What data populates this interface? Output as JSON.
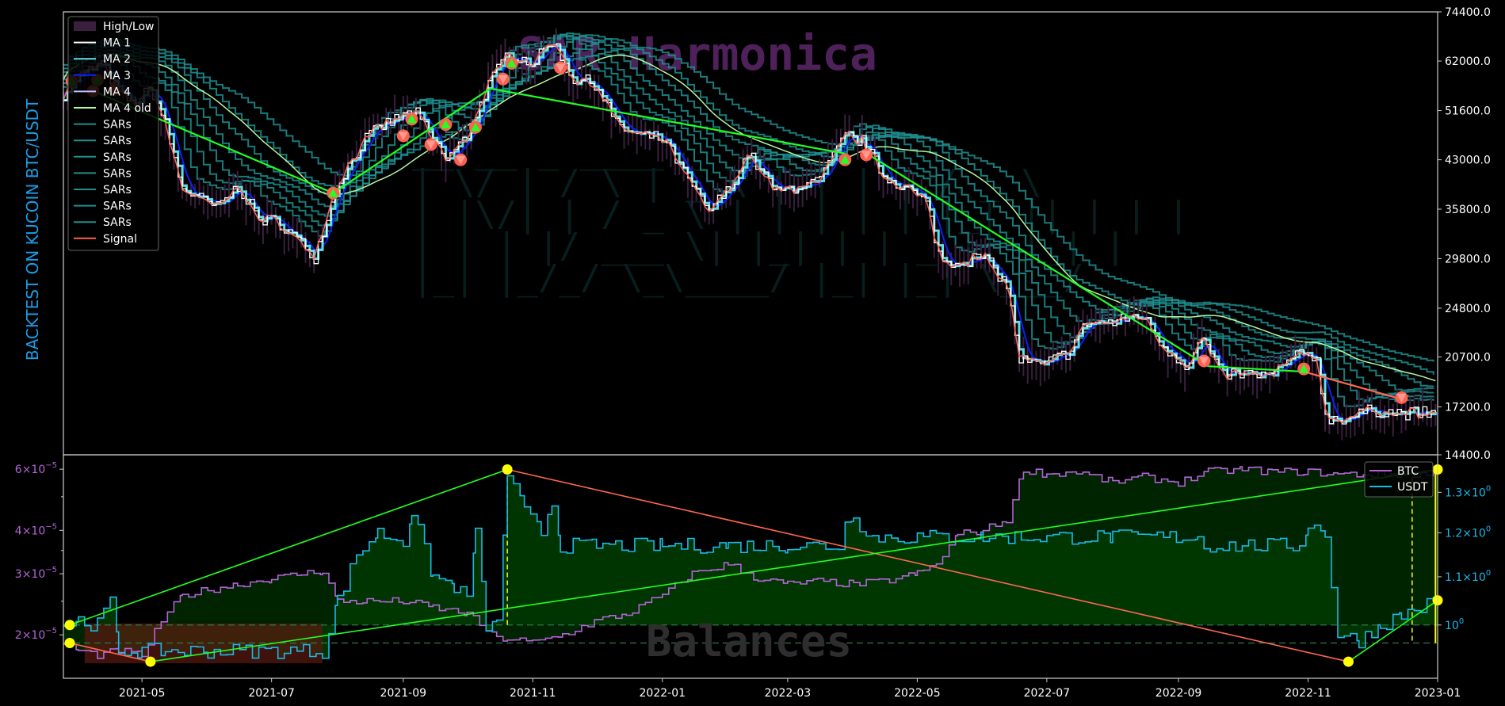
{
  "side_label": "BACKTEST ON KUCOIN  BTC/USDT",
  "watermarks": {
    "top": "SAR Harmonica",
    "bottom": "Balances"
  },
  "colors": {
    "background": "#000000",
    "frame": "#cccccc",
    "price_hl": "#3a1f3f",
    "ma1": "#ffffff",
    "ma2": "#5fe0e8",
    "ma3": "#0a20ff",
    "ma4": "#c0c0ff",
    "ma4old": "#b8f5a0",
    "sars": "#1f8f90",
    "signal": "#ff6050",
    "trade_win": "#22ff22",
    "trade_loss": "#ff6650",
    "btc": "#b464d8",
    "usdt": "#1ab8ea",
    "marker": "#ffff00",
    "fill_green": "#003a00",
    "fill_red": "#5a1a10",
    "watermark_top": "#6a2d78",
    "watermark_bottom": "#2e2e2e",
    "side_label": "#1a9ee8"
  },
  "chart_data": [
    {
      "type": "line",
      "panel": "price",
      "y_scale": "log",
      "ylim": [
        14400,
        74400
      ],
      "y_ticks": [
        "74400.0",
        "62000.0",
        "51600.0",
        "43000.0",
        "35800.0",
        "29800.0",
        "24800.0",
        "20700.0",
        "17200.0",
        "14400.0"
      ],
      "x_range": [
        "2021-03-25",
        "2023-01-01"
      ],
      "legend": {
        "position": "top-left",
        "entries": [
          "High/Low",
          "MA 1",
          "MA 2",
          "MA 3",
          "MA 4",
          "MA 4 old",
          "SARs",
          "SARs",
          "SARs",
          "SARs",
          "SARs",
          "SARs",
          "SARs",
          "Signal"
        ]
      },
      "price_series": {
        "name": "MA 1",
        "x": [
          "2021-03-25",
          "2021-04-01",
          "2021-04-12",
          "2021-04-20",
          "2021-04-27",
          "2021-05-05",
          "2021-05-12",
          "2021-05-19",
          "2021-05-26",
          "2021-06-05",
          "2021-06-15",
          "2021-06-25",
          "2021-07-05",
          "2021-07-15",
          "2021-07-21",
          "2021-08-01",
          "2021-08-14",
          "2021-08-23",
          "2021-09-06",
          "2021-09-21",
          "2021-10-01",
          "2021-10-10",
          "2021-10-20",
          "2021-11-01",
          "2021-11-10",
          "2021-11-20",
          "2021-12-01",
          "2021-12-10",
          "2021-12-20",
          "2022-01-01",
          "2022-01-10",
          "2022-01-22",
          "2022-02-01",
          "2022-02-10",
          "2022-02-24",
          "2022-03-05",
          "2022-03-15",
          "2022-03-28",
          "2022-04-05",
          "2022-04-15",
          "2022-04-25",
          "2022-05-05",
          "2022-05-12",
          "2022-05-20",
          "2022-06-01",
          "2022-06-12",
          "2022-06-18",
          "2022-06-28",
          "2022-07-10",
          "2022-07-20",
          "2022-08-01",
          "2022-08-14",
          "2022-08-25",
          "2022-09-05",
          "2022-09-12",
          "2022-09-20",
          "2022-10-01",
          "2022-10-15",
          "2022-10-25",
          "2022-11-05",
          "2022-11-09",
          "2022-11-20",
          "2022-12-01",
          "2022-12-15",
          "2022-12-25",
          "2023-01-01"
        ],
        "y": [
          55000,
          58500,
          61500,
          55000,
          53000,
          56000,
          49000,
          39000,
          37500,
          36000,
          39000,
          34500,
          34000,
          31500,
          30000,
          39500,
          46500,
          49000,
          51500,
          43000,
          47000,
          56000,
          64000,
          61500,
          67000,
          58000,
          57000,
          49000,
          47000,
          46500,
          41500,
          35500,
          38500,
          44000,
          38000,
          39000,
          39500,
          47000,
          46000,
          40500,
          39000,
          36500,
          29500,
          29500,
          30000,
          27000,
          20500,
          20000,
          21000,
          23500,
          23500,
          24300,
          21500,
          20000,
          22200,
          19500,
          19400,
          19300,
          20800,
          20700,
          16500,
          16500,
          17000,
          16800,
          16800,
          16600
        ]
      },
      "sar_lines": 7,
      "trades": [
        {
          "entry_date": "2021-04-08",
          "entry_price": 55500,
          "exit_date": "2021-07-30",
          "exit_price": 38000,
          "result": "win"
        },
        {
          "entry_date": "2021-07-30",
          "entry_price": 38000,
          "exit_date": "2021-10-12",
          "exit_price": 56000,
          "result": "win"
        },
        {
          "entry_date": "2021-10-12",
          "entry_price": 56000,
          "exit_date": "2022-03-28",
          "exit_price": 44000,
          "result": "win"
        },
        {
          "entry_date": "2022-04-05",
          "entry_price": 44500,
          "exit_date": "2022-09-15",
          "exit_price": 20000,
          "result": "win"
        },
        {
          "entry_date": "2022-09-15",
          "entry_price": 20000,
          "exit_date": "2022-10-30",
          "exit_price": 19600,
          "result": "win"
        },
        {
          "entry_date": "2022-10-30",
          "entry_price": 19600,
          "exit_date": "2022-12-15",
          "exit_price": 17700,
          "result": "loss"
        }
      ],
      "buy_markers": [
        {
          "date": "2021-03-29",
          "price": 57500
        },
        {
          "date": "2021-04-10",
          "price": 57800
        },
        {
          "date": "2021-07-30",
          "price": 38000
        },
        {
          "date": "2021-09-05",
          "price": 50000
        },
        {
          "date": "2021-09-21",
          "price": 49000
        },
        {
          "date": "2021-10-05",
          "price": 48500
        },
        {
          "date": "2021-10-22",
          "price": 61500
        },
        {
          "date": "2022-03-28",
          "price": 43000
        },
        {
          "date": "2022-10-30",
          "price": 19800
        }
      ],
      "sell_markers": [
        {
          "date": "2021-04-08",
          "price": 55500
        },
        {
          "date": "2021-04-18",
          "price": 55800
        },
        {
          "date": "2021-09-01",
          "price": 47000
        },
        {
          "date": "2021-09-14",
          "price": 45500
        },
        {
          "date": "2021-09-28",
          "price": 43000
        },
        {
          "date": "2021-10-18",
          "price": 58000
        },
        {
          "date": "2021-11-14",
          "price": 60500
        },
        {
          "date": "2022-04-07",
          "price": 43800
        },
        {
          "date": "2022-09-13",
          "price": 20400
        },
        {
          "date": "2022-12-15",
          "price": 17800
        }
      ]
    },
    {
      "type": "line",
      "panel": "balances",
      "series": [
        {
          "name": "BTC",
          "axis": "left",
          "y_scale": "log",
          "ylim": [
            1.5e-05,
            6.6e-05
          ],
          "x": [
            "2021-03-25",
            "2021-04-01",
            "2021-04-10",
            "2021-04-20",
            "2021-05-01",
            "2021-05-10",
            "2021-05-20",
            "2021-06-01",
            "2021-06-15",
            "2021-07-01",
            "2021-07-15",
            "2021-07-25",
            "2021-08-01",
            "2021-08-15",
            "2021-09-01",
            "2021-09-15",
            "2021-10-01",
            "2021-10-15",
            "2021-10-20",
            "2021-11-01",
            "2021-11-15",
            "2021-12-01",
            "2021-12-15",
            "2022-01-01",
            "2022-01-15",
            "2022-02-01",
            "2022-02-15",
            "2022-03-01",
            "2022-03-15",
            "2022-04-01",
            "2022-04-15",
            "2022-05-01",
            "2022-05-10",
            "2022-05-20",
            "2022-06-01",
            "2022-06-12",
            "2022-06-20",
            "2022-07-01",
            "2022-07-15",
            "2022-08-01",
            "2022-08-15",
            "2022-09-01",
            "2022-09-15",
            "2022-10-01",
            "2022-10-15",
            "2022-11-01",
            "2022-11-15",
            "2022-12-01",
            "2022-12-15",
            "2023-01-01"
          ],
          "values": [
            1.9e-05,
            1.8e-05,
            1.75e-05,
            1.8e-05,
            1.75e-05,
            2.2e-05,
            2.6e-05,
            2.7e-05,
            2.8e-05,
            2.9e-05,
            3e-05,
            3.05e-05,
            2.5e-05,
            2.5e-05,
            2.5e-05,
            2.4e-05,
            2.3e-05,
            1.95e-05,
            1.95e-05,
            1.9e-05,
            2e-05,
            2.2e-05,
            2.3e-05,
            2.6e-05,
            3e-05,
            3.2e-05,
            2.9e-05,
            2.8e-05,
            2.85e-05,
            2.8e-05,
            2.85e-05,
            3e-05,
            3.2e-05,
            3.9e-05,
            4e-05,
            4.3e-05,
            6e-05,
            5.8e-05,
            5.9e-05,
            5.5e-05,
            5.7e-05,
            5.5e-05,
            5.9e-05,
            6e-05,
            5.9e-05,
            5.9e-05,
            5.8e-05,
            5.8e-05,
            5.8e-05,
            5.8e-05
          ]
        },
        {
          "name": "USDT",
          "axis": "right",
          "y_scale": "log",
          "ylim": [
            0.9,
            1.4
          ],
          "x": [
            "2021-03-25",
            "2021-04-01",
            "2021-04-10",
            "2021-04-16",
            "2021-04-20",
            "2021-05-01",
            "2021-05-12",
            "2021-06-01",
            "2021-07-01",
            "2021-07-25",
            "2021-08-01",
            "2021-08-10",
            "2021-08-20",
            "2021-09-01",
            "2021-09-05",
            "2021-09-15",
            "2021-09-25",
            "2021-10-01",
            "2021-10-05",
            "2021-10-10",
            "2021-10-15",
            "2021-10-20",
            "2021-10-28",
            "2021-11-05",
            "2021-11-10",
            "2021-11-14",
            "2021-12-01",
            "2022-01-01",
            "2022-02-01",
            "2022-03-01",
            "2022-03-25",
            "2022-03-28",
            "2022-04-01",
            "2022-04-07",
            "2022-05-01",
            "2022-06-01",
            "2022-07-01",
            "2022-08-01",
            "2022-09-10",
            "2022-09-13",
            "2022-10-01",
            "2022-10-28",
            "2022-11-01",
            "2022-11-09",
            "2022-11-15",
            "2022-11-25",
            "2022-12-05",
            "2022-12-15",
            "2023-01-01"
          ],
          "values": [
            1.0,
            1.01,
            1.0,
            1.05,
            0.95,
            0.95,
            0.95,
            0.95,
            0.95,
            0.95,
            1.05,
            1.15,
            1.2,
            1.18,
            1.25,
            1.1,
            1.08,
            1.05,
            1.2,
            1.0,
            1.0,
            1.35,
            1.25,
            1.2,
            1.28,
            1.17,
            1.17,
            1.17,
            1.17,
            1.17,
            1.17,
            1.22,
            1.25,
            1.19,
            1.19,
            1.19,
            1.19,
            1.19,
            1.19,
            1.17,
            1.17,
            1.17,
            1.22,
            1.2,
            0.98,
            0.97,
            1.0,
            1.02,
            1.05
          ]
        }
      ],
      "left_ticks": [
        {
          "base": "6",
          "exp": "-5",
          "v": 6e-05
        },
        {
          "base": "4",
          "exp": "-5",
          "v": 4e-05
        },
        {
          "base": "3",
          "exp": "-5",
          "v": 3e-05
        },
        {
          "base": "2",
          "exp": "-5",
          "v": 2e-05
        }
      ],
      "right_ticks": [
        {
          "base": "1.3",
          "exp": "0",
          "v": 1.3
        },
        {
          "base": "1.2",
          "exp": "0",
          "v": 1.2
        },
        {
          "base": "1.1",
          "exp": "0",
          "v": 1.1
        },
        {
          "base": "",
          "exp": "0",
          "v": 1.0
        }
      ],
      "x_ticks": [
        "2021-05",
        "2021-07",
        "2021-09",
        "2021-11",
        "2022-01",
        "2022-03",
        "2022-05",
        "2022-07",
        "2022-09",
        "2022-11",
        "2023-01"
      ],
      "legend": {
        "position": "top-right",
        "entries": [
          "BTC",
          "USDT"
        ]
      },
      "extreme_lines": [
        {
          "from": [
            "2021-03-28",
            1.0
          ],
          "to": [
            "2021-10-20",
            1.36
          ],
          "kind": "up"
        },
        {
          "from": [
            "2021-10-20",
            1.36
          ],
          "to": [
            "2022-11-20",
            0.93
          ],
          "kind": "down"
        },
        {
          "from": [
            "2021-05-05",
            0.93
          ],
          "to": [
            "2023-01-01",
            1.36
          ],
          "kind": "up"
        },
        {
          "from": [
            "2021-03-28",
            0.965
          ],
          "to": [
            "2021-05-05",
            0.93
          ],
          "kind": "down"
        },
        {
          "from": [
            "2022-11-20",
            0.93
          ],
          "to": [
            "2023-01-01",
            1.05
          ],
          "kind": "up"
        }
      ],
      "marker_points": [
        [
          "2021-03-28",
          1.0
        ],
        [
          "2021-03-28",
          0.965
        ],
        [
          "2021-05-05",
          0.93
        ],
        [
          "2021-10-20",
          1.36
        ],
        [
          "2022-11-20",
          0.93
        ],
        [
          "2023-01-01",
          1.05
        ],
        [
          "2023-01-01",
          1.36
        ]
      ]
    }
  ]
}
